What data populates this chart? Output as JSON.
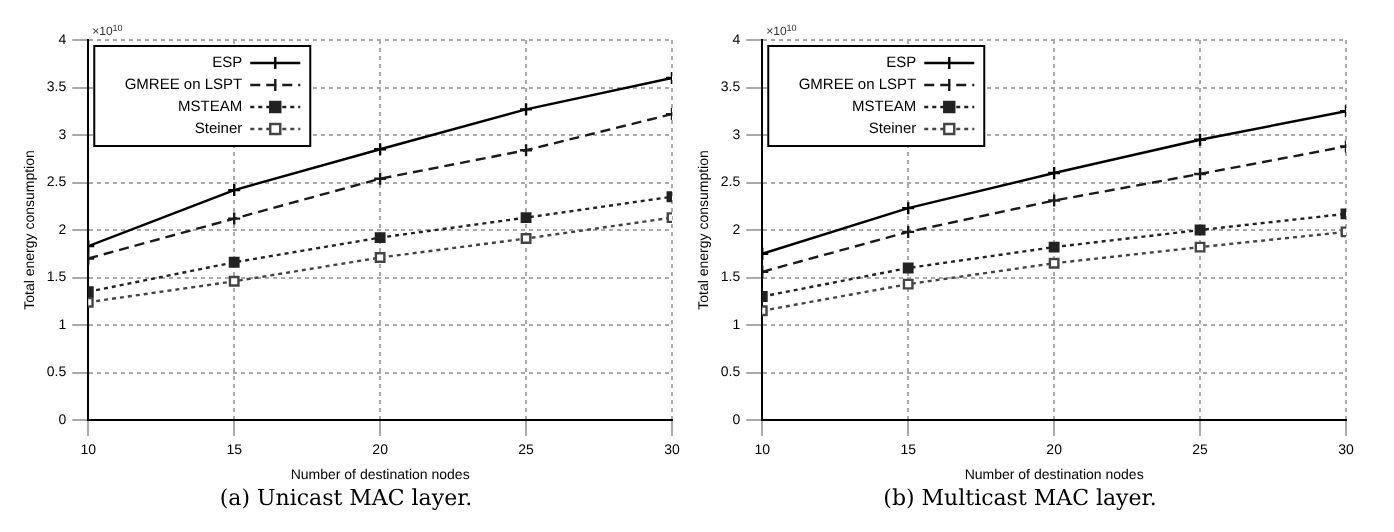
{
  "chart_data": [
    {
      "type": "line",
      "title": "(a) Unicast MAC layer.",
      "xlabel": "Number of destination nodes",
      "ylabel": "Total energy consumption",
      "annotations": [
        "×10$^{10}$"
      ],
      "x": [
        10,
        15,
        20,
        25,
        30
      ],
      "xlim": [
        10,
        30
      ],
      "xticks": [
        10,
        15,
        20,
        25,
        30
      ],
      "ylim": [
        0,
        4
      ],
      "yticks": [
        0,
        0.5,
        1,
        1.5,
        2,
        2.5,
        3,
        3.5,
        4
      ],
      "grid": true,
      "legend": "top left",
      "series": [
        {
          "name": "ESP",
          "color": "#000000",
          "marker": "cross",
          "line_style": "solid",
          "values": [
            1.83,
            2.42,
            2.85,
            3.27,
            3.6
          ]
        },
        {
          "name": "GMREE on LSPT",
          "color": "#1a1a1a",
          "marker": "cross",
          "line_style": "dashed",
          "values": [
            1.7,
            2.12,
            2.54,
            2.84,
            3.22
          ]
        },
        {
          "name": "MSTEAM",
          "color": "#222222",
          "marker": "square",
          "line_style": "dotted",
          "values": [
            1.35,
            1.66,
            1.92,
            2.13,
            2.35
          ]
        },
        {
          "name": "Steiner",
          "color": "#444444",
          "marker": "square",
          "line_style": "dotted",
          "values": [
            1.24,
            1.46,
            1.71,
            1.91,
            2.13
          ]
        }
      ]
    },
    {
      "type": "line",
      "title": "(b) Multicast MAC layer.",
      "xlabel": "Number of destination nodes",
      "ylabel": "Total energy consumption",
      "annotations": [
        "×10$^{10}$"
      ],
      "x": [
        10,
        15,
        20,
        25,
        30
      ],
      "xlim": [
        10,
        30
      ],
      "xticks": [
        10,
        15,
        20,
        25,
        30
      ],
      "ylim": [
        0,
        4
      ],
      "yticks": [
        0,
        0.5,
        1,
        1.5,
        2,
        2.5,
        3,
        3.5,
        4
      ],
      "grid": true,
      "legend": "top left",
      "series": [
        {
          "name": "ESP",
          "color": "#000000",
          "marker": "cross",
          "line_style": "solid",
          "values": [
            1.75,
            2.23,
            2.6,
            2.95,
            3.25
          ]
        },
        {
          "name": "GMREE on LSPT",
          "color": "#1a1a1a",
          "marker": "cross",
          "line_style": "dashed",
          "values": [
            1.56,
            1.98,
            2.31,
            2.59,
            2.88
          ]
        },
        {
          "name": "MSTEAM",
          "color": "#222222",
          "marker": "square",
          "line_style": "dotted",
          "values": [
            1.3,
            1.6,
            1.82,
            2.0,
            2.17
          ]
        },
        {
          "name": "Steiner",
          "color": "#444444",
          "marker": "square",
          "line_style": "dotted",
          "values": [
            1.15,
            1.43,
            1.65,
            1.82,
            1.98
          ]
        }
      ]
    }
  ]
}
